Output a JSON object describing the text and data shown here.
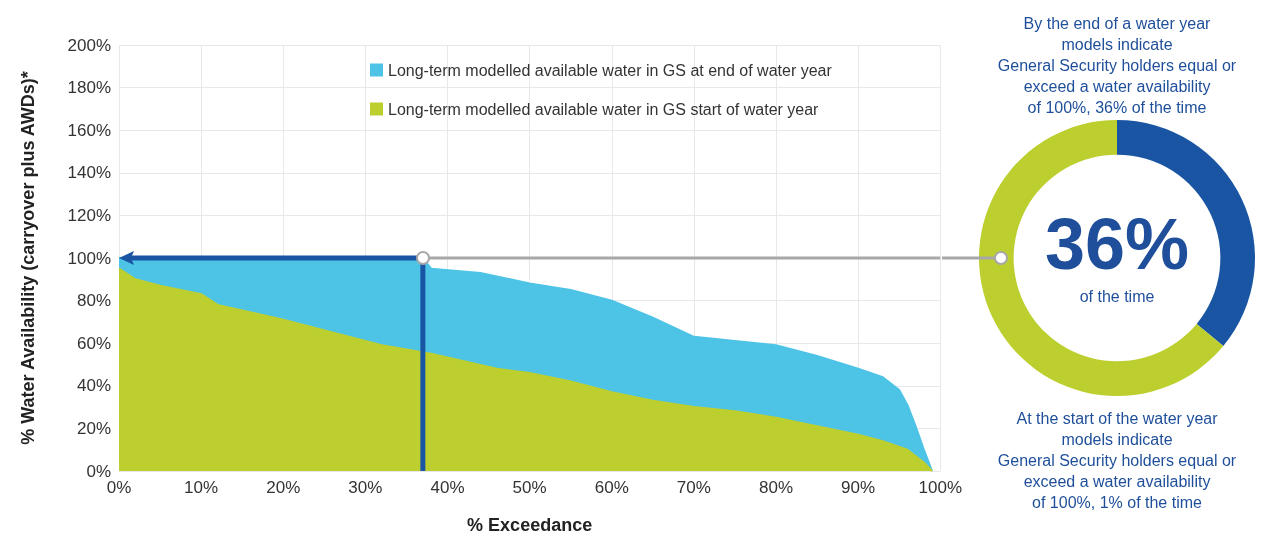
{
  "chart_data": [
    {
      "type": "area",
      "xlabel": "% Exceedance",
      "ylabel": "% Water Availability (carryover plus AWDs)*",
      "series": [
        {
          "name": "Long-term modelled available water in GS at end of water year",
          "color": "#4dc3e6",
          "x": [
            0,
            10,
            20,
            30,
            37,
            38,
            44,
            50,
            55,
            60,
            65,
            70,
            75,
            80,
            85,
            90,
            93,
            95,
            96,
            97,
            98,
            99
          ],
          "values": [
            100,
            100,
            100,
            100,
            100,
            95,
            93,
            88,
            85,
            80,
            72,
            63,
            61,
            59,
            54,
            48,
            44,
            38,
            31,
            21,
            10,
            0
          ]
        },
        {
          "name": "Long-term modelled available water in GS start of water year",
          "color": "#bccf2f",
          "x": [
            0,
            2,
            5,
            10,
            12,
            20,
            28,
            32,
            38,
            46,
            50,
            55,
            60,
            65,
            70,
            75,
            80,
            85,
            90,
            93,
            96,
            98,
            99
          ],
          "values": [
            95,
            90,
            87,
            83,
            78,
            71,
            63,
            59,
            55,
            48,
            46,
            42,
            37,
            33,
            30,
            28,
            25,
            21,
            17,
            14,
            10,
            4,
            0
          ]
        }
      ],
      "xlim": [
        0,
        100
      ],
      "xticks": [
        {
          "value": 0,
          "label": "0%"
        },
        {
          "value": 10,
          "label": "10%"
        },
        {
          "value": 20,
          "label": "20%"
        },
        {
          "value": 30,
          "label": "30%"
        },
        {
          "value": 40,
          "label": "40%"
        },
        {
          "value": 50,
          "label": "50%"
        },
        {
          "value": 60,
          "label": "60%"
        },
        {
          "value": 70,
          "label": "70%"
        },
        {
          "value": 80,
          "label": "80%"
        },
        {
          "value": 90,
          "label": "90%"
        },
        {
          "value": 100,
          "label": "100%"
        }
      ],
      "ylim": [
        0,
        200
      ],
      "yticks": [
        {
          "value": 0,
          "label": "0%"
        },
        {
          "value": 20,
          "label": "20%"
        },
        {
          "value": 40,
          "label": "40%"
        },
        {
          "value": 60,
          "label": "60%"
        },
        {
          "value": 80,
          "label": "80%"
        },
        {
          "value": 100,
          "label": "100%"
        },
        {
          "value": 120,
          "label": "120%"
        },
        {
          "value": 140,
          "label": "140%"
        },
        {
          "value": 160,
          "label": "160%"
        },
        {
          "value": 180,
          "label": "180%"
        },
        {
          "value": 200,
          "label": "200%"
        }
      ],
      "ref_lines": [
        {
          "axis": "y",
          "value": 100
        },
        {
          "axis": "x",
          "value": 37,
          "color": "#1a55a4"
        }
      ],
      "grid": true,
      "legend": "top"
    },
    {
      "type": "donut",
      "title": "By the end of a water year\nmodels indicate\nGeneral Security holders equal or\nexceed a water availability\nof 100%, 36% of the time",
      "categories": [
        null,
        null
      ],
      "values": [
        36,
        64
      ],
      "colors": [
        "#1a55a4",
        "#bccf2f"
      ],
      "annotations": [
        "36%",
        "of the time",
        "At the start of the water year\nmodels indicate\nGeneral Security holders equal or\nexceed a water availability\nof 100%, 1% of the time"
      ]
    }
  ]
}
